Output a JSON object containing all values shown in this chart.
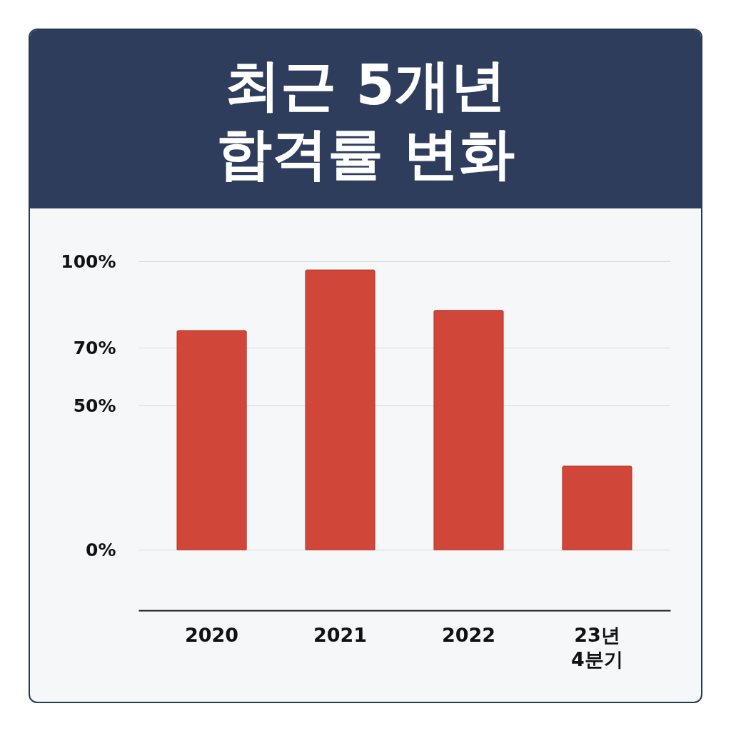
{
  "chart_data": {
    "type": "bar",
    "title": "최근 5개년 합격률 변화",
    "categories": [
      "2020",
      "2021",
      "2022",
      "23년 4분기"
    ],
    "values": [
      76,
      97,
      83,
      29
    ],
    "color": "#d0473a",
    "ylim": [
      -21,
      100
    ],
    "yticks": [
      {
        "value": 0,
        "label": "0%"
      },
      {
        "value": 50,
        "label": "50%"
      },
      {
        "value": 70,
        "label": "70%"
      },
      {
        "value": 100,
        "label": "100%"
      }
    ],
    "grid": "y"
  }
}
